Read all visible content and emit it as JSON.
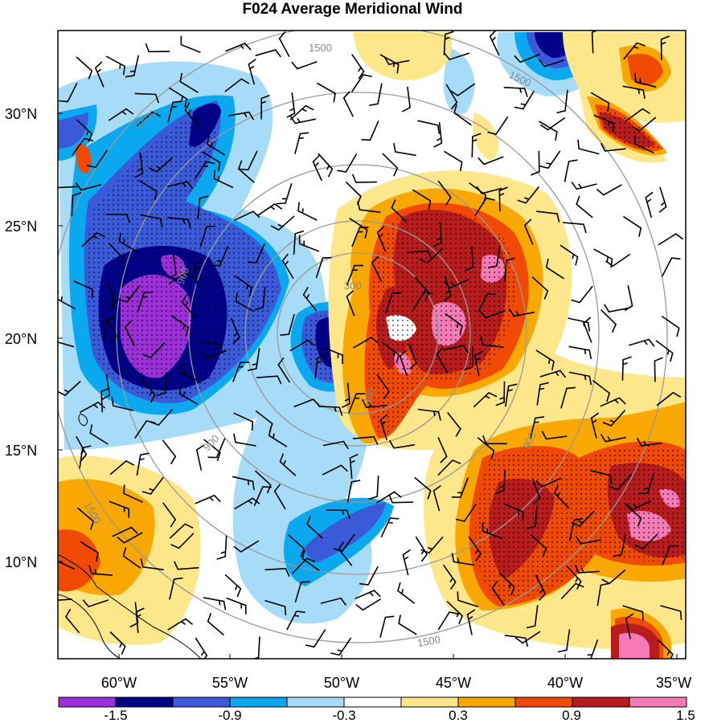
{
  "title": "F024 Average Meridional Wind",
  "map": {
    "lat_labels": [
      "30°N",
      "25°N",
      "20°N",
      "15°N",
      "10°N"
    ],
    "lon_labels": [
      "60°W",
      "55°W",
      "50°W",
      "45°W",
      "40°W",
      "35°W"
    ],
    "range_ring_labels": [
      "1500",
      "1500",
      "900",
      "300",
      "900",
      "1500",
      "1500",
      "900",
      "300",
      "1500"
    ],
    "colors": {
      "c_neg_2": "#9b30d9",
      "c_neg_1_5": "#00008b",
      "c_neg_1_2": "#3a5ad9",
      "c_neg_0_9": "#0aa8ee",
      "c_neg_0_6": "#a6dcf7",
      "c_zero": "#ffffff",
      "c_pos_0_6": "#fde78a",
      "c_pos_0_9": "#f8a800",
      "c_pos_1_2": "#f04a05",
      "c_pos_1_5": "#b81c1c",
      "c_pos_2": "#f57ab5"
    }
  },
  "colorbar": {
    "labels": [
      "-1.5",
      "-0.9",
      "-0.3",
      "0.3",
      "0.9",
      "1.5"
    ],
    "colors": [
      "#9b30d9",
      "#00008b",
      "#3a5ad9",
      "#0aa8ee",
      "#a6dcf7",
      "#ffffff",
      "#fde78a",
      "#f8a800",
      "#f04a05",
      "#b81c1c",
      "#f57ab5"
    ]
  }
}
